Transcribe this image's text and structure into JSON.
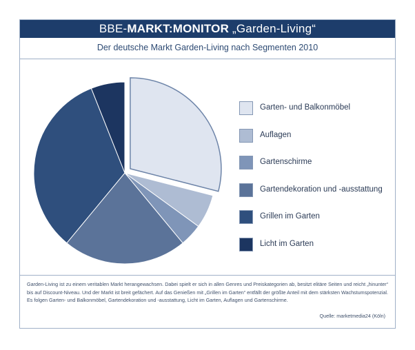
{
  "header": {
    "title_prefix": "BBE-",
    "title_strong": "MARKT:MONITOR",
    "title_suffix": " „Garden-Living“"
  },
  "subtitle": "Der deutsche Markt Garden-Living nach Segmenten 2010",
  "chart_data": {
    "type": "pie",
    "title": "Der deutsche Markt Garden-Living nach Segmenten 2010",
    "exploded_slice": "Garten- und Balkonmöbel",
    "legend_position": "right",
    "slices": [
      {
        "label": "Garten- und Balkonmöbel",
        "value": 29,
        "color": "#dfe5f0"
      },
      {
        "label": "Auflagen",
        "value": 6,
        "color": "#aebcd3"
      },
      {
        "label": "Gartenschirme",
        "value": 4,
        "color": "#7f95b8"
      },
      {
        "label": "Gartendekoration und -ausstattung",
        "value": 22,
        "color": "#5b7399"
      },
      {
        "label": "Grillen im Garten",
        "value": 33,
        "color": "#2f4f7d"
      },
      {
        "label": "Licht im Garten",
        "value": 6,
        "color": "#1c3560"
      }
    ]
  },
  "footnote": "Garden-Living ist zu einem veritablen Markt herangewachsen. Dabei spielt er sich in allen Genres und Preiskategorien ab, besitzt elitäre Seiten und reicht „hinunter“ bis auf Discount-Niveau. Und der Markt ist breit gefächert. Auf das Genießen mit „Grillen im Garten“ entfällt der größte Anteil mit dem stärksten Wachstumspotenzial. Es folgen Garten- und Balkonmöbel, Gartendekoration und -ausstattung, Licht im Garten, Auflagen und Gartenschirme.",
  "source": "Quelle: marketmedia24 (Köln)"
}
